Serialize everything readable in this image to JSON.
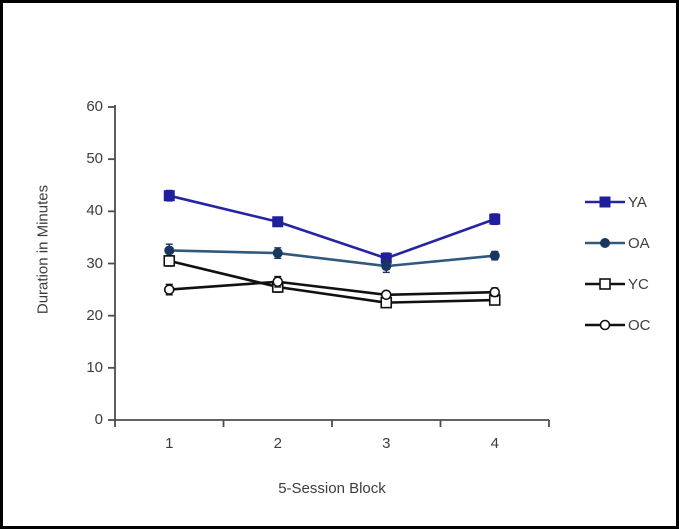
{
  "figure": {
    "background_color": "#ffffff",
    "border_color": "#000000",
    "axis_color": "#4d4d4d",
    "text_color": "#3d3d3d"
  },
  "chart_data": {
    "type": "line",
    "title": "",
    "xlabel": "5-Session Block",
    "ylabel": "Duration in Minutes",
    "categories": [
      "1",
      "2",
      "3",
      "4"
    ],
    "ylim": [
      0,
      60
    ],
    "yticks": [
      0,
      10,
      20,
      30,
      40,
      50,
      60
    ],
    "grid": false,
    "legend_position": "right",
    "error_bars": true,
    "series": [
      {
        "name": "YA",
        "values": [
          43,
          38,
          31,
          38.5
        ],
        "errors": [
          1.0,
          0.8,
          1.0,
          1.0
        ],
        "marker": "filled-square",
        "line_color": "#2525A4",
        "marker_color": "#1F1F9C"
      },
      {
        "name": "OA",
        "values": [
          32.5,
          32,
          29.5,
          31.5
        ],
        "errors": [
          1.2,
          1.0,
          1.2,
          0.8
        ],
        "marker": "filled-circle",
        "line_color": "#31587F",
        "marker_color": "#17375E"
      },
      {
        "name": "YC",
        "values": [
          30.5,
          25.5,
          22.5,
          23
        ],
        "errors": [
          1.0,
          1.0,
          0.8,
          0.8
        ],
        "marker": "open-square",
        "line_color": "#111111",
        "marker_color": "#ffffff"
      },
      {
        "name": "OC",
        "values": [
          25,
          26.5,
          24,
          24.5
        ],
        "errors": [
          1.0,
          1.0,
          0.6,
          0.8
        ],
        "marker": "open-circle",
        "line_color": "#111111",
        "marker_color": "#ffffff"
      }
    ]
  }
}
